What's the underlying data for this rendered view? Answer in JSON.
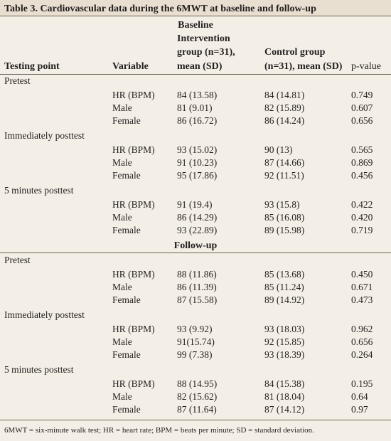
{
  "table": {
    "title": "Table 3. Cardiovascular data during the 6MWT at baseline and follow-up",
    "header": [
      "Testing point",
      "Variable",
      "Intervention group (n=31), mean (SD)",
      "Control group (n=31), mean (SD)",
      "p-value"
    ],
    "sections": [
      {
        "label": "Baseline",
        "groups": [
          {
            "testing_point": "Pretest",
            "rows": [
              [
                "HR (BPM)",
                "84 (13.58)",
                "84 (14.81)",
                "0.749"
              ],
              [
                "Male",
                "81 (9.01)",
                "82 (15.89)",
                "0.607"
              ],
              [
                "Female",
                "86 (16.72)",
                "86 (14.24)",
                "0.656"
              ]
            ]
          },
          {
            "testing_point": "Immediately posttest",
            "rows": [
              [
                "HR (BPM)",
                "93 (15.02)",
                "90 (13)",
                "0.565"
              ],
              [
                "Male",
                "91 (10.23)",
                "87 (14.66)",
                "0.869"
              ],
              [
                "Female",
                "95 (17.86)",
                "92 (11.51)",
                "0.456"
              ]
            ]
          },
          {
            "testing_point": "5 minutes posttest",
            "rows": [
              [
                "HR (BPM)",
                "91 (19.4)",
                "93 (15.8)",
                "0.422"
              ],
              [
                "Male",
                "86 (14.29)",
                "85 (16.08)",
                "0.420"
              ],
              [
                "Female",
                "93 (22.89)",
                "89 (15.98)",
                "0.719"
              ]
            ]
          }
        ]
      },
      {
        "label": "Follow-up",
        "groups": [
          {
            "testing_point": "Pretest",
            "rows": [
              [
                "HR (BPM)",
                "88 (11.86)",
                "85 (13.68)",
                "0.450"
              ],
              [
                "Male",
                "86 (11.39)",
                "85 (11.24)",
                "0.671"
              ],
              [
                "Female",
                "87 (15.58)",
                "89 (14.92)",
                "0.473"
              ]
            ]
          },
          {
            "testing_point": "Immediately posttest",
            "rows": [
              [
                "HR (BPM)",
                "93 (9.92)",
                "93 (18.03)",
                "0.962"
              ],
              [
                "Male",
                "91(15.74)",
                "92 (15.85)",
                "0.656"
              ],
              [
                "Female",
                "99 (7.38)",
                "93 (18.39)",
                "0.264"
              ]
            ]
          },
          {
            "testing_point": "5 minutes posttest",
            "rows": [
              [
                "HR (BPM)",
                "88 (14.95)",
                "84 (15.38)",
                "0.195"
              ],
              [
                "Male",
                "82 (15.62)",
                "81 (18.04)",
                "0.64"
              ],
              [
                "Female",
                "87 (11.64)",
                "87 (14.12)",
                "0.97"
              ]
            ]
          }
        ]
      }
    ],
    "footnote": "6MWT = six-minute walk test; HR = heart rate; BPM = beats per minute; SD = standard deviation."
  }
}
